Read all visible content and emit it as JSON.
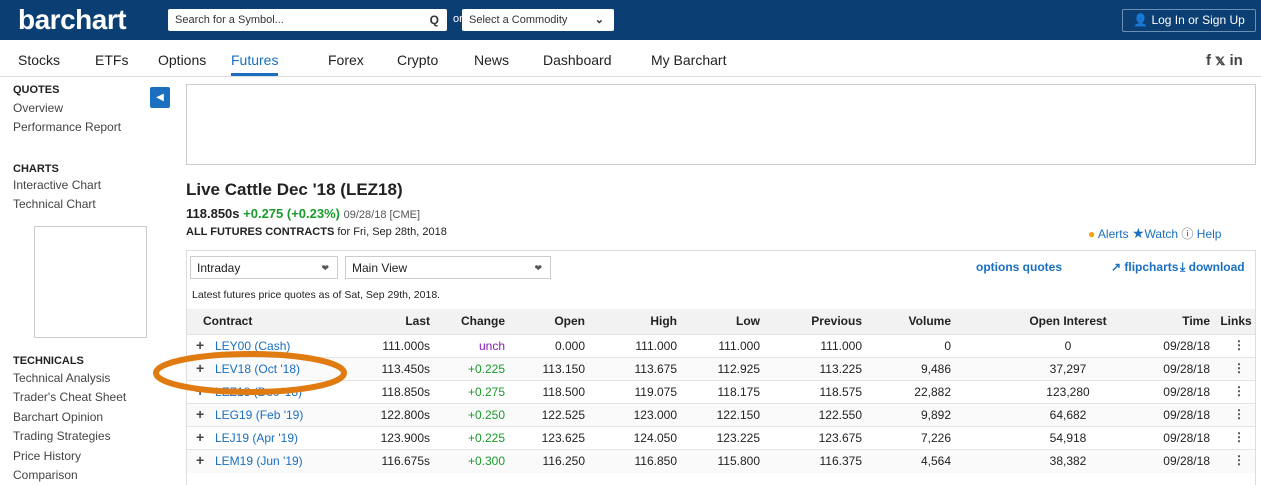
{
  "header": {
    "logo": "barchart",
    "search_placeholder": "Search for a Symbol...",
    "search_icon": "Q",
    "or": "or",
    "commodity_select": "Select a Commodity",
    "login": "Log In or Sign Up"
  },
  "nav": {
    "items": [
      "Stocks",
      "ETFs",
      "Options",
      "Futures",
      "Forex",
      "Crypto",
      "News",
      "Dashboard",
      "My Barchart"
    ]
  },
  "sidebar": {
    "sections": [
      {
        "heading": "QUOTES",
        "links": [
          "Overview",
          "Performance Report"
        ]
      },
      {
        "heading": "CHARTS",
        "links": [
          "Interactive Chart",
          "Technical Chart"
        ]
      },
      {
        "heading": "TECHNICALS",
        "links": [
          "Technical Analysis",
          "Trader's Cheat Sheet",
          "Barchart Opinion",
          "Trading Strategies",
          "Price History",
          "Comparison"
        ]
      }
    ]
  },
  "quote": {
    "title": "Live Cattle Dec '18 (LEZ18)",
    "last": "118.850s",
    "change": "+0.275 (+0.23%)",
    "date_exchange": "09/28/18 [CME]",
    "contracts_label": "ALL FUTURES CONTRACTS",
    "contracts_date": "for Fri, Sep 28th, 2018"
  },
  "actions": [
    "Alerts",
    "Watch",
    "Help"
  ],
  "controls": {
    "period": "Intraday",
    "view": "Main View",
    "links": [
      "options quotes",
      "flipcharts",
      "download"
    ],
    "note": "Latest futures price quotes as of Sat, Sep 29th, 2018."
  },
  "table": {
    "columns": [
      "Contract",
      "Last",
      "Change",
      "Open",
      "High",
      "Low",
      "Previous",
      "Volume",
      "Open Interest",
      "Time",
      "Links"
    ],
    "rows": [
      [
        "LEY00 (Cash)",
        "111.000s",
        "unch",
        "0.000",
        "111.000",
        "111.000",
        "111.000",
        "0",
        "0",
        "09/28/18"
      ],
      [
        "LEV18 (Oct '18)",
        "113.450s",
        "+0.225",
        "113.150",
        "113.675",
        "112.925",
        "113.225",
        "9,486",
        "37,297",
        "09/28/18"
      ],
      [
        "LEZ18 (Dec '18)",
        "118.850s",
        "+0.275",
        "118.500",
        "119.075",
        "118.175",
        "118.575",
        "22,882",
        "123,280",
        "09/28/18"
      ],
      [
        "LEG19 (Feb '19)",
        "122.800s",
        "+0.250",
        "122.525",
        "123.000",
        "122.150",
        "122.550",
        "9,892",
        "64,682",
        "09/28/18"
      ],
      [
        "LEJ19 (Apr '19)",
        "123.900s",
        "+0.225",
        "123.625",
        "124.050",
        "123.225",
        "123.675",
        "7,226",
        "54,918",
        "09/28/18"
      ],
      [
        "LEM19 (Jun '19)",
        "116.675s",
        "+0.300",
        "116.250",
        "116.850",
        "115.800",
        "116.375",
        "4,564",
        "38,382",
        "09/28/18"
      ]
    ]
  }
}
